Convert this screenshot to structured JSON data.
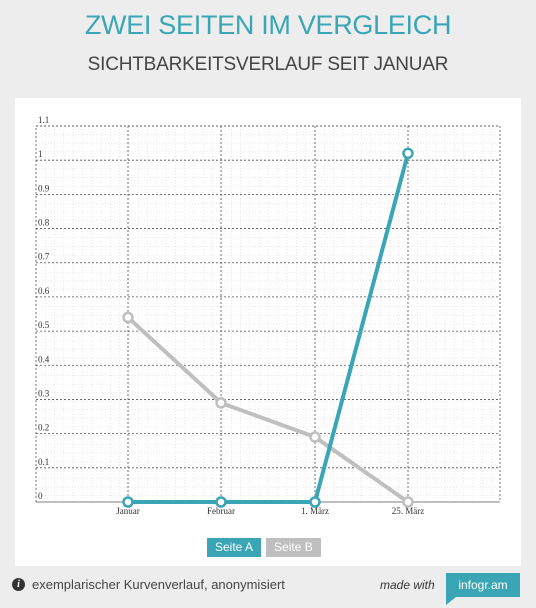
{
  "header": {
    "title": "ZWEI SEITEN IM VERGLEICH",
    "subtitle": "SICHTBARKEITSVERLAUF SEIT JANUAR"
  },
  "chart_data": {
    "type": "line",
    "categories": [
      "Januar",
      "Februar",
      "1. März",
      "25. März"
    ],
    "ylim": [
      0,
      1.1
    ],
    "yticks": [
      "0",
      "0.1",
      "0.2",
      "0.3",
      "0.4",
      "0.5",
      "0.6",
      "0.7",
      "0.8",
      "0.9",
      "1",
      "1.1"
    ],
    "grid": true,
    "legend_position": "bottom-center",
    "series": [
      {
        "name": "Seite A",
        "color": "#3aa6b5",
        "values": [
          0,
          0,
          0,
          1.02
        ]
      },
      {
        "name": "Seite B",
        "color": "#bfbfbf",
        "values": [
          0.54,
          0.29,
          0.19,
          0
        ]
      }
    ]
  },
  "footer": {
    "note": "exemplarischer Kurvenverlauf, anonymisiert",
    "info_icon": "i",
    "made_with": "made with",
    "brand": "infogr.am"
  }
}
